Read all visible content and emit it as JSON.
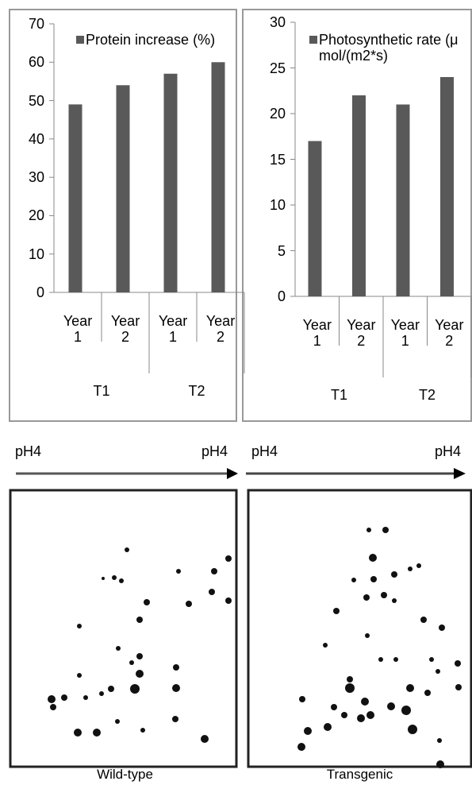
{
  "chart_data": [
    {
      "type": "bar",
      "categories": [
        "Year 1",
        "Year 2",
        "Year 1",
        "Year 2"
      ],
      "groups": [
        "T1",
        "T2"
      ],
      "series": [
        {
          "name": "Protein increase (%)",
          "color": "#595959",
          "values": [
            49,
            54,
            57,
            60
          ]
        }
      ],
      "ylim": [
        0,
        70
      ],
      "yticks": [
        0,
        10,
        20,
        30,
        40,
        50,
        60,
        70
      ],
      "grid": false,
      "legend": "top"
    },
    {
      "type": "bar",
      "categories": [
        "Year 1",
        "Year 2",
        "Year 1",
        "Year 2"
      ],
      "groups": [
        "T1",
        "T2"
      ],
      "series": [
        {
          "name": "Photosynthetic rate (μ mol/(m2*s)",
          "color": "#595959",
          "values": [
            17,
            22,
            21,
            24
          ]
        }
      ],
      "ylim": [
        0,
        30
      ],
      "yticks": [
        0,
        5,
        10,
        15,
        20,
        25,
        30
      ],
      "grid": false,
      "legend": "top"
    }
  ],
  "gels": [
    {
      "left_label": "pH4",
      "right_label": "pH4",
      "caption": "Wild-type"
    },
    {
      "left_label": "pH4",
      "right_label": "pH4",
      "caption": "Transgenic"
    }
  ]
}
